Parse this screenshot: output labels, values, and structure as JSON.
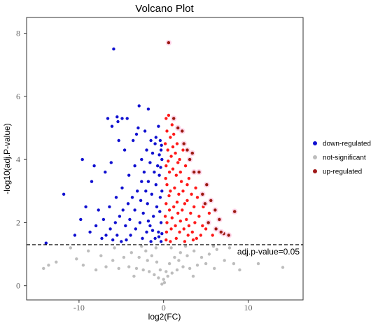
{
  "chart_data": {
    "type": "scatter",
    "title": "Volcano Plot",
    "xlabel": "log2(FC)",
    "ylabel": "-log10(adj.P-value)",
    "xlim": [
      -16.2,
      16.5
    ],
    "ylim": [
      -0.45,
      8.5
    ],
    "x_ticks": [
      -10,
      0,
      10
    ],
    "y_ticks": [
      0,
      2,
      4,
      6,
      8
    ],
    "grid": false,
    "threshold": {
      "y": 1.3,
      "label": "adj.p-value=0.05"
    },
    "legend": {
      "placement": "right",
      "entries": [
        {
          "label": "down-regulated",
          "color": "#1010d0"
        },
        {
          "label": "not-significant",
          "color": "#bdbdbd"
        },
        {
          "label": "up-regulated",
          "color": "#a01818"
        }
      ]
    },
    "colors": {
      "down": "#1010d0",
      "not_significant": "#bdbdbd",
      "up": "#ff1a1a",
      "up_outlier": "#9a1a10",
      "up_halo": "#ffd6ea"
    },
    "series": [
      {
        "name": "down-regulated",
        "color": "#1010d0",
        "points": [
          [
            -5.9,
            7.5
          ],
          [
            -1.8,
            5.6
          ],
          [
            -2.9,
            5.7
          ],
          [
            -6.6,
            5.3
          ],
          [
            -5.5,
            5.35
          ],
          [
            -5.4,
            5.2
          ],
          [
            -4.9,
            5.3
          ],
          [
            -4.3,
            5.3
          ],
          [
            -3.0,
            5.0
          ],
          [
            -2.2,
            4.9
          ],
          [
            -6.1,
            5.05
          ],
          [
            -9.6,
            4.0
          ],
          [
            -8.2,
            3.8
          ],
          [
            -8.5,
            3.3
          ],
          [
            -11.8,
            2.9
          ],
          [
            -13.9,
            1.35
          ],
          [
            -9.8,
            2.1
          ],
          [
            -9.2,
            2.5
          ],
          [
            -7.7,
            2.4
          ],
          [
            -6.9,
            3.6
          ],
          [
            -6.2,
            3.9
          ],
          [
            -5.3,
            4.6
          ],
          [
            -4.6,
            4.3
          ],
          [
            -3.6,
            4.6
          ],
          [
            -3.2,
            4.8
          ],
          [
            -0.6,
            5.05
          ],
          [
            -0.4,
            4.6
          ],
          [
            -0.3,
            4.3
          ],
          [
            -0.2,
            4.0
          ],
          [
            -1.0,
            4.5
          ],
          [
            -1.3,
            4.2
          ],
          [
            -1.6,
            3.9
          ],
          [
            -2.3,
            3.6
          ],
          [
            -2.6,
            3.3
          ],
          [
            -3.1,
            3.0
          ],
          [
            -3.7,
            2.8
          ],
          [
            -4.2,
            2.6
          ],
          [
            -4.8,
            2.4
          ],
          [
            -5.2,
            2.2
          ],
          [
            -5.7,
            2.0
          ],
          [
            -6.3,
            1.8
          ],
          [
            -6.8,
            1.6
          ],
          [
            -7.3,
            1.5
          ],
          [
            -8.0,
            1.9
          ],
          [
            -8.7,
            1.7
          ],
          [
            -10.5,
            1.6
          ],
          [
            -0.5,
            3.5
          ],
          [
            -0.9,
            3.2
          ],
          [
            -1.4,
            2.9
          ],
          [
            -1.9,
            2.6
          ],
          [
            -2.4,
            2.3
          ],
          [
            -2.8,
            2.0
          ],
          [
            -3.3,
            1.8
          ],
          [
            -3.9,
            1.6
          ],
          [
            -4.4,
            1.45
          ],
          [
            -5.0,
            1.4
          ],
          [
            -0.4,
            2.8
          ],
          [
            -0.8,
            2.5
          ],
          [
            -1.2,
            2.2
          ],
          [
            -1.6,
            1.9
          ],
          [
            -2.0,
            1.7
          ],
          [
            -2.5,
            1.5
          ],
          [
            -0.3,
            2.0
          ],
          [
            -0.6,
            1.7
          ],
          [
            -1.0,
            1.5
          ],
          [
            -1.5,
            1.4
          ],
          [
            -0.3,
            1.4
          ],
          [
            -0.2,
            3.0
          ],
          [
            -0.7,
            3.8
          ],
          [
            -1.1,
            3.6
          ],
          [
            -1.8,
            3.3
          ],
          [
            -2.1,
            3.0
          ],
          [
            -2.7,
            2.7
          ],
          [
            -3.4,
            2.4
          ],
          [
            -4.0,
            2.1
          ],
          [
            -4.5,
            1.9
          ],
          [
            -5.5,
            1.6
          ],
          [
            -6.0,
            1.45
          ],
          [
            -0.5,
            4.15
          ],
          [
            -0.9,
            4.7
          ],
          [
            -1.5,
            4.6
          ],
          [
            -2.0,
            4.3
          ],
          [
            -2.6,
            4.0
          ],
          [
            -3.4,
            3.8
          ],
          [
            -4.1,
            3.5
          ],
          [
            -4.9,
            3.1
          ],
          [
            -5.6,
            2.8
          ],
          [
            -6.4,
            2.5
          ],
          [
            -7.1,
            2.1
          ],
          [
            -0.25,
            4.45
          ],
          [
            -0.35,
            3.75
          ],
          [
            -0.45,
            2.35
          ],
          [
            -0.2,
            1.65
          ],
          [
            -0.55,
            1.55
          ],
          [
            -1.3,
            1.75
          ],
          [
            -1.8,
            2.05
          ]
        ]
      },
      {
        "name": "up-regulated",
        "color": "#ff1a1a",
        "points": [
          [
            0.3,
            5.3
          ],
          [
            0.6,
            5.4
          ],
          [
            1.0,
            5.1
          ],
          [
            0.4,
            4.9
          ],
          [
            0.8,
            4.7
          ],
          [
            1.2,
            4.8
          ],
          [
            1.6,
            4.5
          ],
          [
            0.5,
            4.3
          ],
          [
            0.9,
            4.1
          ],
          [
            1.4,
            4.2
          ],
          [
            1.9,
            4.0
          ],
          [
            2.3,
            4.3
          ],
          [
            0.3,
            3.8
          ],
          [
            0.7,
            3.6
          ],
          [
            1.1,
            3.7
          ],
          [
            1.5,
            3.5
          ],
          [
            2.0,
            3.6
          ],
          [
            2.6,
            3.8
          ],
          [
            3.0,
            3.4
          ],
          [
            0.4,
            3.2
          ],
          [
            0.8,
            3.0
          ],
          [
            1.3,
            3.1
          ],
          [
            1.8,
            2.9
          ],
          [
            2.3,
            3.0
          ],
          [
            2.8,
            2.7
          ],
          [
            3.3,
            2.9
          ],
          [
            3.8,
            3.1
          ],
          [
            0.3,
            2.6
          ],
          [
            0.7,
            2.4
          ],
          [
            1.2,
            2.5
          ],
          [
            1.7,
            2.3
          ],
          [
            2.2,
            2.4
          ],
          [
            2.7,
            2.1
          ],
          [
            3.2,
            2.3
          ],
          [
            3.7,
            2.0
          ],
          [
            4.2,
            2.2
          ],
          [
            4.7,
            2.5
          ],
          [
            0.4,
            2.0
          ],
          [
            0.9,
            1.8
          ],
          [
            1.4,
            1.9
          ],
          [
            1.9,
            1.7
          ],
          [
            2.4,
            1.8
          ],
          [
            2.9,
            1.6
          ],
          [
            3.4,
            1.7
          ],
          [
            3.9,
            1.5
          ],
          [
            4.4,
            1.6
          ],
          [
            5.0,
            1.8
          ],
          [
            0.3,
            1.45
          ],
          [
            0.8,
            1.4
          ],
          [
            1.5,
            1.5
          ],
          [
            2.5,
            1.4
          ],
          [
            3.5,
            1.45
          ],
          [
            0.2,
            4.5
          ],
          [
            0.25,
            3.4
          ],
          [
            0.2,
            2.2
          ],
          [
            0.35,
            1.7
          ],
          [
            1.1,
            4.4
          ],
          [
            1.7,
            3.9
          ],
          [
            2.1,
            3.3
          ],
          [
            2.5,
            2.6
          ],
          [
            3.0,
            1.9
          ],
          [
            3.6,
            2.5
          ],
          [
            4.0,
            2.8
          ],
          [
            5.4,
            2.3
          ],
          [
            0.55,
            3.95
          ],
          [
            0.65,
            2.85
          ],
          [
            1.0,
            2.15
          ],
          [
            1.6,
            2.65
          ],
          [
            2.0,
            2.05
          ],
          [
            2.8,
            3.2
          ],
          [
            4.6,
            1.9
          ],
          [
            5.8,
            1.6
          ]
        ]
      },
      {
        "name": "up-regulated-outlier",
        "color": "#9a1a10",
        "points": [
          [
            0.6,
            7.7
          ],
          [
            1.2,
            5.3
          ],
          [
            2.4,
            4.5
          ],
          [
            3.4,
            4.2
          ],
          [
            4.2,
            3.6
          ],
          [
            3.1,
            4.0
          ],
          [
            5.1,
            3.2
          ],
          [
            4.6,
            2.9
          ],
          [
            5.6,
            2.7
          ],
          [
            6.1,
            2.4
          ],
          [
            6.6,
            2.1
          ],
          [
            5.3,
            2.0
          ],
          [
            6.2,
            1.8
          ],
          [
            7.1,
            1.65
          ],
          [
            7.7,
            1.6
          ],
          [
            8.4,
            2.35
          ],
          [
            2.2,
            4.9
          ],
          [
            3.6,
            3.6
          ],
          [
            4.9,
            2.6
          ],
          [
            6.8,
            1.7
          ],
          [
            1.7,
            5.0
          ],
          [
            2.8,
            4.3
          ]
        ]
      },
      {
        "name": "not-significant",
        "color": "#bdbdbd",
        "points": [
          [
            -14.2,
            0.55
          ],
          [
            -13.6,
            0.65
          ],
          [
            -12.7,
            0.75
          ],
          [
            -10.3,
            0.85
          ],
          [
            -8.9,
            1.1
          ],
          [
            -7.4,
            0.95
          ],
          [
            -6.0,
            0.8
          ],
          [
            -4.7,
            0.9
          ],
          [
            -3.8,
            1.05
          ],
          [
            -2.9,
            0.9
          ],
          [
            -2.1,
            1.1
          ],
          [
            -1.4,
            0.95
          ],
          [
            -0.8,
            0.75
          ],
          [
            -0.4,
            0.5
          ],
          [
            0.0,
            0.2
          ],
          [
            0.3,
            0.45
          ],
          [
            0.7,
            0.7
          ],
          [
            1.3,
            0.9
          ],
          [
            2.0,
            1.05
          ],
          [
            2.8,
            0.95
          ],
          [
            3.6,
            1.1
          ],
          [
            4.5,
            0.9
          ],
          [
            5.4,
            1.0
          ],
          [
            6.3,
            1.15
          ],
          [
            7.2,
            0.8
          ],
          [
            8.3,
            0.7
          ],
          [
            9.7,
            1.0
          ],
          [
            11.2,
            0.7
          ],
          [
            14.1,
            0.58
          ],
          [
            -6.8,
            0.6
          ],
          [
            -5.3,
            0.55
          ],
          [
            -4.1,
            0.6
          ],
          [
            -3.2,
            0.55
          ],
          [
            -2.4,
            0.5
          ],
          [
            -1.7,
            0.45
          ],
          [
            -1.1,
            0.35
          ],
          [
            -0.6,
            0.25
          ],
          [
            0.5,
            0.3
          ],
          [
            1.0,
            0.4
          ],
          [
            1.6,
            0.5
          ],
          [
            2.3,
            0.6
          ],
          [
            3.1,
            0.55
          ],
          [
            4.0,
            0.65
          ],
          [
            5.0,
            0.7
          ],
          [
            6.0,
            0.55
          ],
          [
            -8.0,
            0.5
          ],
          [
            -9.5,
            0.65
          ],
          [
            -11.0,
            1.2
          ],
          [
            7.8,
            1.2
          ],
          [
            9.0,
            0.5
          ],
          [
            -1.9,
            0.8
          ],
          [
            1.8,
            0.8
          ],
          [
            -0.2,
            0.05
          ],
          [
            0.1,
            0.1
          ],
          [
            -3.5,
            0.3
          ],
          [
            3.5,
            0.3
          ],
          [
            -5.8,
            1.2
          ],
          [
            5.9,
            1.25
          ],
          [
            -0.9,
            1.2
          ],
          [
            0.9,
            1.2
          ],
          [
            -2.6,
            1.25
          ],
          [
            2.6,
            1.25
          ]
        ]
      }
    ]
  }
}
